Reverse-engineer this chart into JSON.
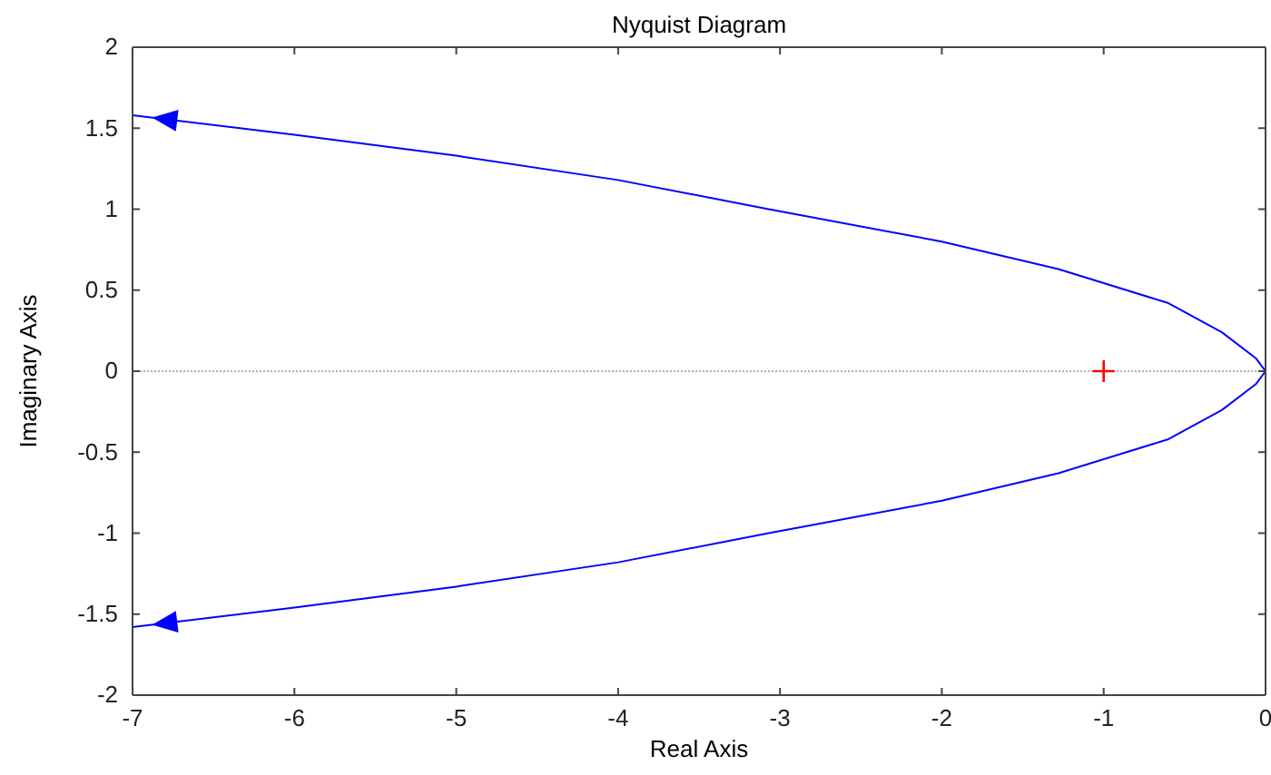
{
  "chart_data": {
    "type": "line",
    "title": "Nyquist Diagram",
    "xlabel": "Real Axis",
    "ylabel": "Imaginary Axis",
    "xlim": [
      -7,
      0
    ],
    "xticks": [
      -7,
      -6,
      -5,
      -4,
      -3,
      -2,
      -1,
      0
    ],
    "ylim": [
      -2,
      2
    ],
    "yticks": [
      -2,
      -1.5,
      -1,
      -0.5,
      0,
      0.5,
      1,
      1.5,
      2
    ],
    "grid": false,
    "ref_lines": [
      {
        "axis": "y",
        "value": 0,
        "color": "#b0b0b0",
        "line_style": "dotted"
      }
    ],
    "series": [
      {
        "color": "#0000ff",
        "marker": "none",
        "x": [
          -7,
          -6,
          -5,
          -4,
          -3.07,
          -2,
          -1.28,
          -0.6,
          -0.27,
          -0.06,
          0,
          -0.06,
          -0.27,
          -0.6,
          -1.28,
          -2,
          -3.07,
          -4,
          -5,
          -6,
          -7
        ],
        "values": [
          1.58,
          1.46,
          1.33,
          1.18,
          1.0,
          0.8,
          0.63,
          0.42,
          0.24,
          0.08,
          0,
          -0.08,
          -0.24,
          -0.42,
          -0.63,
          -0.8,
          -1.0,
          -1.18,
          -1.33,
          -1.46,
          -1.58
        ]
      },
      {
        "type": "scatter",
        "color": "#ff0000",
        "marker": "cross",
        "x": [
          -1
        ],
        "values": [
          0
        ]
      }
    ]
  }
}
